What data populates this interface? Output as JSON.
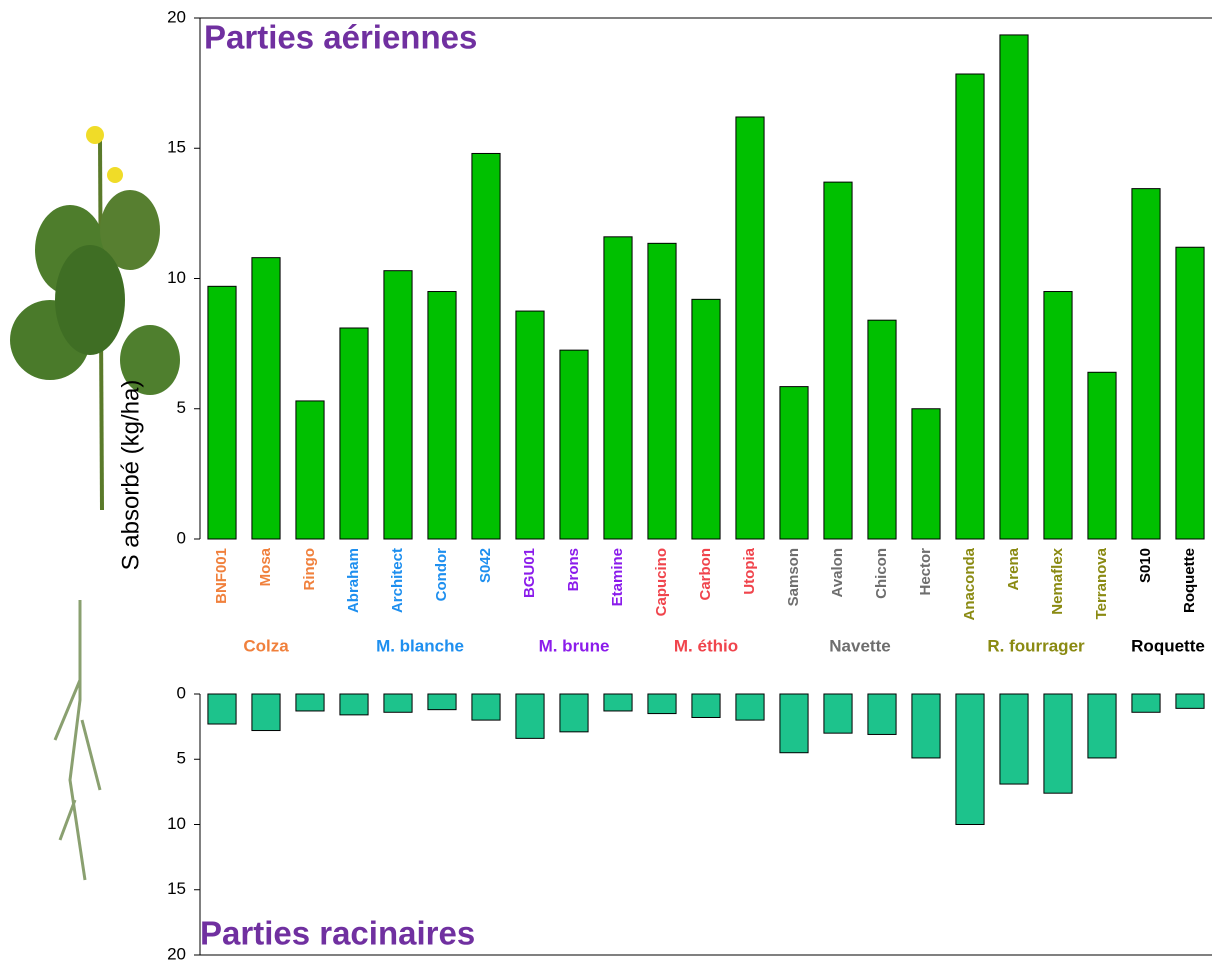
{
  "chart_data": [
    {
      "type": "bar",
      "title": "Parties aériennes",
      "ylabel": "S absorbé (kg/ha)",
      "categories": [
        "BNF001",
        "Mosa",
        "Ringo",
        "Abraham",
        "Architect",
        "Condor",
        "S042",
        "BGU01",
        "Brons",
        "Etamine",
        "Capucino",
        "Carbon",
        "Utopia",
        "Samson",
        "Avalon",
        "Chicon",
        "Hector",
        "Anaconda",
        "Arena",
        "Nemaflex",
        "Terranova",
        "S010",
        "Roquette"
      ],
      "category_colors": [
        "#f0803c",
        "#f0803c",
        "#f0803c",
        "#1e8fef",
        "#1e8fef",
        "#1e8fef",
        "#1e8fef",
        "#8b1ceb",
        "#8b1ceb",
        "#8b1ceb",
        "#f0444c",
        "#f0444c",
        "#f0444c",
        "#6e6e6e",
        "#6e6e6e",
        "#6e6e6e",
        "#6e6e6e",
        "#8a8a12",
        "#8a8a12",
        "#8a8a12",
        "#8a8a12",
        "#000000",
        "#000000"
      ],
      "groups": [
        {
          "name": "Colza",
          "color": "#f0803c"
        },
        {
          "name": "M. blanche",
          "color": "#1e8fef"
        },
        {
          "name": "M. brune",
          "color": "#8b1ceb"
        },
        {
          "name": "M. éthio",
          "color": "#f0444c"
        },
        {
          "name": "Navette",
          "color": "#6e6e6e"
        },
        {
          "name": "R. fourrager",
          "color": "#8a8a12"
        },
        {
          "name": "Roquette",
          "color": "#000000"
        }
      ],
      "values": [
        9.7,
        10.8,
        5.3,
        8.1,
        10.3,
        9.5,
        14.8,
        8.75,
        7.25,
        11.6,
        11.35,
        9.2,
        16.2,
        5.85,
        13.7,
        8.4,
        5.0,
        17.85,
        19.35,
        9.5,
        6.4,
        13.45,
        11.2
      ],
      "color": "#00c000",
      "ylim": [
        0,
        20
      ],
      "yticks": [
        0,
        5,
        10,
        15,
        20
      ]
    },
    {
      "type": "bar",
      "title": "Parties racinaires",
      "values": [
        2.3,
        2.8,
        1.3,
        1.6,
        1.4,
        1.2,
        2.0,
        3.4,
        2.9,
        1.3,
        1.5,
        1.8,
        2.0,
        4.5,
        3.0,
        3.1,
        4.9,
        10.0,
        6.9,
        7.6,
        4.9,
        1.4,
        1.1
      ],
      "color": "#1dc38c",
      "ylim": [
        0,
        20
      ],
      "yticks": [
        0,
        5,
        10,
        15,
        20
      ],
      "inverted": true
    }
  ]
}
